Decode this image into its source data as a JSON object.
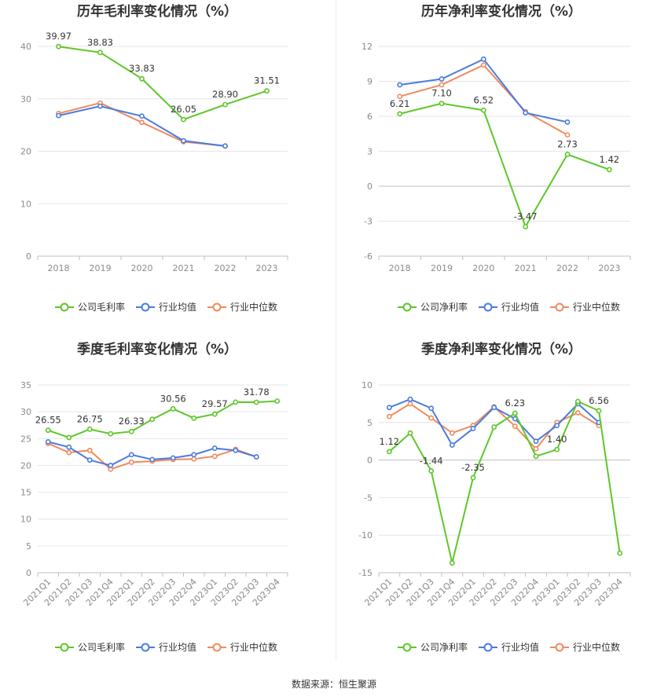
{
  "colors": {
    "company": "#5dc728",
    "avg": "#4a7be0",
    "median": "#f08a5d",
    "grid": "#e6e6e6",
    "axis": "#bfbfbf"
  },
  "footer": {
    "source": "数据来源：恒生聚源"
  },
  "chart_data": [
    {
      "type": "line",
      "title": "历年毛利率变化情况（%）",
      "categories": [
        "2018",
        "2019",
        "2020",
        "2021",
        "2022",
        "2023"
      ],
      "ylim": [
        0,
        40
      ],
      "yticks": [
        0,
        10,
        20,
        30,
        40
      ],
      "legend_position": "bottom",
      "grid": true,
      "series": [
        {
          "name": "公司毛利率",
          "color": "#5dc728",
          "values": [
            39.97,
            38.83,
            33.83,
            26.05,
            28.9,
            31.51
          ],
          "labels": [
            "39.97",
            "38.83",
            "33.83",
            "26.05",
            "28.90",
            "31.51"
          ]
        },
        {
          "name": "行业均值",
          "color": "#4a7be0",
          "values": [
            26.8,
            28.6,
            26.7,
            22.0,
            21.0,
            null
          ]
        },
        {
          "name": "行业中位数",
          "color": "#f08a5d",
          "values": [
            27.2,
            29.2,
            25.5,
            21.8,
            21.0,
            null
          ]
        }
      ]
    },
    {
      "type": "line",
      "title": "历年净利率变化情况（%）",
      "categories": [
        "2018",
        "2019",
        "2020",
        "2021",
        "2022",
        "2023"
      ],
      "ylim": [
        -6,
        12
      ],
      "yticks": [
        -6,
        -3,
        0,
        3,
        6,
        9,
        12
      ],
      "legend_position": "bottom",
      "grid": true,
      "series": [
        {
          "name": "公司净利率",
          "color": "#5dc728",
          "values": [
            6.21,
            7.1,
            6.52,
            -3.47,
            2.73,
            1.42
          ],
          "labels": [
            "6.21",
            "7.10",
            "6.52",
            "-3.47",
            "2.73",
            "1.42"
          ]
        },
        {
          "name": "行业均值",
          "color": "#4a7be0",
          "values": [
            8.7,
            9.2,
            10.9,
            6.3,
            5.5,
            null
          ]
        },
        {
          "name": "行业中位数",
          "color": "#f08a5d",
          "values": [
            7.7,
            8.7,
            10.4,
            6.4,
            4.4,
            null
          ]
        }
      ]
    },
    {
      "type": "line",
      "title": "季度毛利率变化情况（%）",
      "categories": [
        "2021Q1",
        "2021Q2",
        "2021Q3",
        "2021Q4",
        "2022Q1",
        "2022Q2",
        "2022Q3",
        "2022Q4",
        "2023Q1",
        "2023Q2",
        "2023Q3",
        "2023Q4"
      ],
      "ylim": [
        0,
        35
      ],
      "yticks": [
        0,
        5,
        10,
        15,
        20,
        25,
        30,
        35
      ],
      "legend_position": "bottom",
      "grid": true,
      "series": [
        {
          "name": "公司毛利率",
          "color": "#5dc728",
          "values": [
            26.55,
            25.2,
            26.75,
            25.9,
            26.33,
            28.6,
            30.56,
            28.8,
            29.57,
            31.8,
            31.78,
            32.0
          ],
          "labels": [
            "26.55",
            "",
            "26.75",
            "",
            "26.33",
            "",
            "30.56",
            "",
            "29.57",
            "",
            "31.78",
            ""
          ]
        },
        {
          "name": "行业均值",
          "color": "#4a7be0",
          "values": [
            24.4,
            23.4,
            21.0,
            20.0,
            22.0,
            21.1,
            21.4,
            22.0,
            23.2,
            22.8,
            21.6,
            null
          ]
        },
        {
          "name": "行业中位数",
          "color": "#f08a5d",
          "values": [
            24.1,
            22.4,
            22.8,
            19.3,
            20.6,
            20.8,
            21.1,
            21.2,
            21.7,
            23.0,
            21.6,
            null
          ]
        }
      ]
    },
    {
      "type": "line",
      "title": "季度净利率变化情况（%）",
      "categories": [
        "2021Q1",
        "2021Q2",
        "2021Q3",
        "2021Q4",
        "2022Q1",
        "2022Q2",
        "2022Q3",
        "2022Q4",
        "2023Q1",
        "2023Q2",
        "2023Q3",
        "2023Q4"
      ],
      "ylim": [
        -15,
        10
      ],
      "yticks": [
        -15,
        -10,
        -5,
        0,
        5,
        10
      ],
      "legend_position": "bottom",
      "grid": true,
      "series": [
        {
          "name": "公司净利率",
          "color": "#5dc728",
          "values": [
            1.12,
            3.6,
            -1.44,
            -13.7,
            -2.35,
            4.4,
            6.23,
            0.5,
            1.4,
            7.8,
            6.56,
            -12.4
          ],
          "labels": [
            "1.12",
            "",
            "-1.44",
            "",
            "-2.35",
            "",
            "6.23",
            "",
            "1.40",
            "",
            "6.56",
            ""
          ]
        },
        {
          "name": "行业均值",
          "color": "#4a7be0",
          "values": [
            7.0,
            8.1,
            6.9,
            2.0,
            4.2,
            7.0,
            5.5,
            2.5,
            4.6,
            7.5,
            5.0,
            null
          ]
        },
        {
          "name": "行业中位数",
          "color": "#f08a5d",
          "values": [
            5.8,
            7.5,
            5.6,
            3.6,
            4.6,
            7.1,
            4.5,
            1.5,
            5.0,
            6.3,
            4.6,
            null
          ]
        }
      ]
    }
  ]
}
